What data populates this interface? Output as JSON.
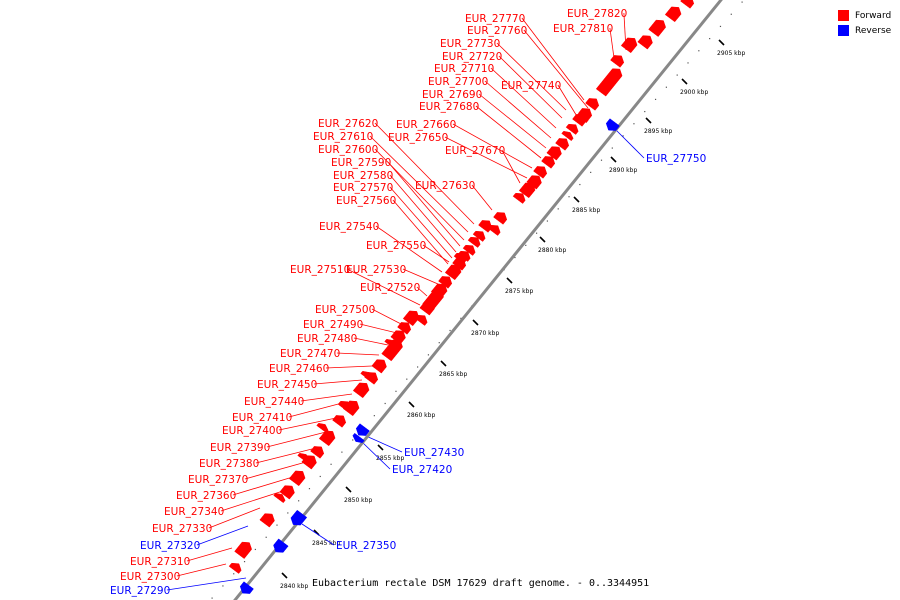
{
  "caption": "Eubacterium rectale DSM 17629 draft genome. - 0..3344951",
  "legend": [
    {
      "label": "Forward",
      "color": "#ff0000"
    },
    {
      "label": "Reverse",
      "color": "#0000ff"
    }
  ],
  "colors": {
    "forward": "#ff0000",
    "reverse": "#0000ff",
    "backbone": "#888888"
  },
  "ticks": [
    "2840 kbp",
    "2845 kbp",
    "2850 kbp",
    "2855 kbp",
    "2860 kbp",
    "2865 kbp",
    "2870 kbp",
    "2875 kbp",
    "2880 kbp",
    "2885 kbp",
    "2890 kbp",
    "2895 kbp",
    "2900 kbp",
    "2905 kbp"
  ],
  "genes": [
    {
      "label": "EUR_27820",
      "strand": "forward"
    },
    {
      "label": "EUR_27810",
      "strand": "forward"
    },
    {
      "label": "EUR_27770",
      "strand": "forward"
    },
    {
      "label": "EUR_27760",
      "strand": "forward"
    },
    {
      "label": "EUR_27730",
      "strand": "forward"
    },
    {
      "label": "EUR_27720",
      "strand": "forward"
    },
    {
      "label": "EUR_27710",
      "strand": "forward"
    },
    {
      "label": "EUR_27700",
      "strand": "forward"
    },
    {
      "label": "EUR_27740",
      "strand": "forward"
    },
    {
      "label": "EUR_27690",
      "strand": "forward"
    },
    {
      "label": "EUR_27680",
      "strand": "forward"
    },
    {
      "label": "EUR_27620",
      "strand": "forward"
    },
    {
      "label": "EUR_27660",
      "strand": "forward"
    },
    {
      "label": "EUR_27610",
      "strand": "forward"
    },
    {
      "label": "EUR_27650",
      "strand": "forward"
    },
    {
      "label": "EUR_27600",
      "strand": "forward"
    },
    {
      "label": "EUR_27670",
      "strand": "forward"
    },
    {
      "label": "EUR_27590",
      "strand": "forward"
    },
    {
      "label": "EUR_27580",
      "strand": "forward"
    },
    {
      "label": "EUR_27570",
      "strand": "forward"
    },
    {
      "label": "EUR_27630",
      "strand": "forward"
    },
    {
      "label": "EUR_27560",
      "strand": "forward"
    },
    {
      "label": "EUR_27540",
      "strand": "forward"
    },
    {
      "label": "EUR_27550",
      "strand": "forward"
    },
    {
      "label": "EUR_27510",
      "strand": "forward"
    },
    {
      "label": "EUR_27530",
      "strand": "forward"
    },
    {
      "label": "EUR_27520",
      "strand": "forward"
    },
    {
      "label": "EUR_27500",
      "strand": "forward"
    },
    {
      "label": "EUR_27490",
      "strand": "forward"
    },
    {
      "label": "EUR_27480",
      "strand": "forward"
    },
    {
      "label": "EUR_27470",
      "strand": "forward"
    },
    {
      "label": "EUR_27460",
      "strand": "forward"
    },
    {
      "label": "EUR_27450",
      "strand": "forward"
    },
    {
      "label": "EUR_27440",
      "strand": "forward"
    },
    {
      "label": "EUR_27410",
      "strand": "forward"
    },
    {
      "label": "EUR_27400",
      "strand": "forward"
    },
    {
      "label": "EUR_27390",
      "strand": "forward"
    },
    {
      "label": "EUR_27380",
      "strand": "forward"
    },
    {
      "label": "EUR_27370",
      "strand": "forward"
    },
    {
      "label": "EUR_27360",
      "strand": "forward"
    },
    {
      "label": "EUR_27340",
      "strand": "forward"
    },
    {
      "label": "EUR_27330",
      "strand": "forward"
    },
    {
      "label": "EUR_27310",
      "strand": "forward"
    },
    {
      "label": "EUR_27300",
      "strand": "forward"
    },
    {
      "label": "EUR_27750",
      "strand": "reverse"
    },
    {
      "label": "EUR_27430",
      "strand": "reverse"
    },
    {
      "label": "EUR_27420",
      "strand": "reverse"
    },
    {
      "label": "EUR_27350",
      "strand": "reverse"
    },
    {
      "label": "EUR_27320",
      "strand": "reverse"
    },
    {
      "label": "EUR_27290",
      "strand": "reverse"
    }
  ]
}
